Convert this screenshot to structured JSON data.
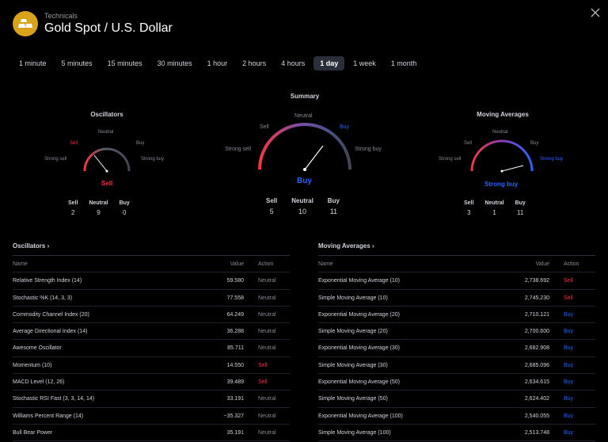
{
  "header": {
    "subtitle": "Technicals",
    "title": "Gold Spot / U.S. Dollar"
  },
  "tabs": [
    "1 minute",
    "5 minutes",
    "15 minutes",
    "30 minutes",
    "1 hour",
    "2 hours",
    "4 hours",
    "1 day",
    "1 week",
    "1 month"
  ],
  "active_tab": "1 day",
  "summary": {
    "title": "Summary",
    "labels": {
      "neutral": "Neutral",
      "sell": "Sell",
      "buy": "Buy",
      "strong_sell": "Strong sell",
      "strong_buy": "Strong buy"
    },
    "signal": "Buy",
    "counts": [
      {
        "label": "Sell",
        "value": "5"
      },
      {
        "label": "Neutral",
        "value": "10"
      },
      {
        "label": "Buy",
        "value": "11"
      }
    ]
  },
  "oscillators_gauge": {
    "title": "Oscillators",
    "labels": {
      "neutral": "Neutral",
      "sell": "Sell",
      "buy": "Buy",
      "strong_sell": "Strong sell",
      "strong_buy": "Strong buy"
    },
    "signal": "Sell",
    "counts": [
      {
        "label": "Sell",
        "value": "2"
      },
      {
        "label": "Neutral",
        "value": "9"
      },
      {
        "label": "Buy",
        "value": "0"
      }
    ]
  },
  "ma_gauge": {
    "title": "Moving Averages",
    "labels": {
      "neutral": "Neutral",
      "sell": "Sell",
      "buy": "Buy",
      "strong_sell": "Strong sell",
      "strong_buy": "Strong buy"
    },
    "signal": "Strong buy",
    "counts": [
      {
        "label": "Sell",
        "value": "3"
      },
      {
        "label": "Neutral",
        "value": "1"
      },
      {
        "label": "Buy",
        "value": "11"
      }
    ]
  },
  "oscillators_table": {
    "title": "Oscillators ›",
    "columns": {
      "name": "Name",
      "value": "Value",
      "action": "Action"
    },
    "rows": [
      {
        "name": "Relative Strength Index (14)",
        "value": "59.580",
        "action": "Neutral"
      },
      {
        "name": "Stochastic %K (14, 3, 3)",
        "value": "77.558",
        "action": "Neutral"
      },
      {
        "name": "Commodity Channel Index (20)",
        "value": "64.249",
        "action": "Neutral"
      },
      {
        "name": "Average Directional Index (14)",
        "value": "36.288",
        "action": "Neutral"
      },
      {
        "name": "Awesome Oscillator",
        "value": "85.711",
        "action": "Neutral"
      },
      {
        "name": "Momentum (10)",
        "value": "14.550",
        "action": "Sell"
      },
      {
        "name": "MACD Level (12, 26)",
        "value": "39.489",
        "action": "Sell"
      },
      {
        "name": "Stochastic RSI Fast (3, 3, 14, 14)",
        "value": "33.191",
        "action": "Neutral"
      },
      {
        "name": "Williams Percent Range (14)",
        "value": "−35.327",
        "action": "Neutral"
      },
      {
        "name": "Bull Bear Power",
        "value": "35.191",
        "action": "Neutral"
      }
    ]
  },
  "ma_table": {
    "title": "Moving Averages ›",
    "columns": {
      "name": "Name",
      "value": "Value",
      "action": "Action"
    },
    "rows": [
      {
        "name": "Exponential Moving Average (10)",
        "value": "2,738.692",
        "action": "Sell"
      },
      {
        "name": "Simple Moving Average (10)",
        "value": "2,745.230",
        "action": "Sell"
      },
      {
        "name": "Exponential Moving Average (20)",
        "value": "2,710.121",
        "action": "Buy"
      },
      {
        "name": "Simple Moving Average (20)",
        "value": "2,700.600",
        "action": "Buy"
      },
      {
        "name": "Exponential Moving Average (30)",
        "value": "2,682.908",
        "action": "Buy"
      },
      {
        "name": "Simple Moving Average (30)",
        "value": "2,685.096",
        "action": "Buy"
      },
      {
        "name": "Exponential Moving Average (50)",
        "value": "2,634.615",
        "action": "Buy"
      },
      {
        "name": "Simple Moving Average (50)",
        "value": "2,624.402",
        "action": "Buy"
      },
      {
        "name": "Exponential Moving Average (100)",
        "value": "2,540.055",
        "action": "Buy"
      },
      {
        "name": "Simple Moving Average (100)",
        "value": "2,513.748",
        "action": "Buy"
      }
    ]
  },
  "colors": {
    "sell": "#f23645",
    "buy": "#2962ff",
    "neutral": "#868993",
    "active_tab_bg": "#2a2e39",
    "logo": "#d9a21b"
  }
}
